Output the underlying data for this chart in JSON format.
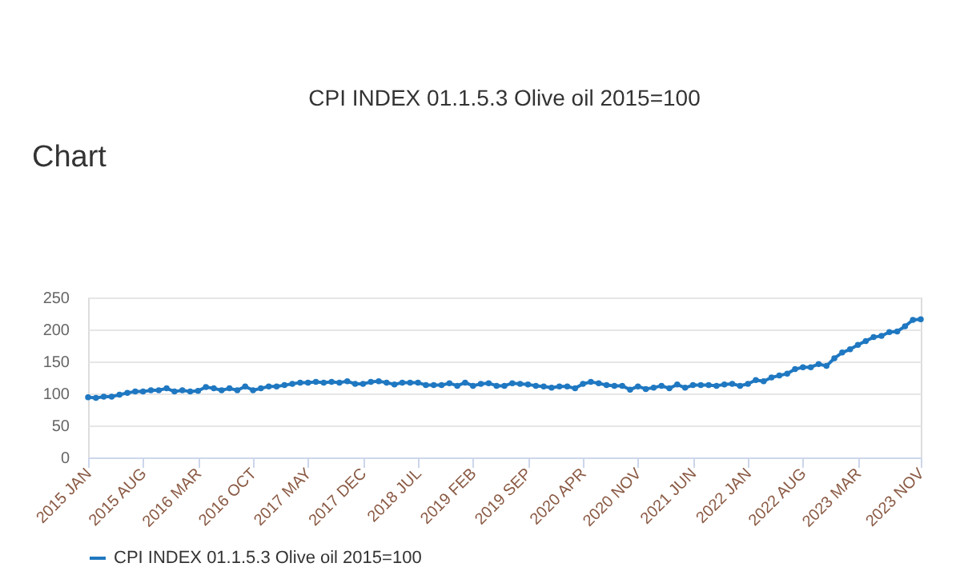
{
  "chart_data": {
    "type": "line",
    "title": "CPI INDEX 01.1.5.3 Olive oil 2015=100",
    "annotations": [
      "Chart"
    ],
    "categories": [
      "2015 JAN",
      null,
      null,
      null,
      null,
      null,
      null,
      "2015 AUG",
      null,
      null,
      null,
      null,
      null,
      null,
      "2016 MAR",
      null,
      null,
      null,
      null,
      null,
      null,
      "2016 OCT",
      null,
      null,
      null,
      null,
      null,
      null,
      "2017 MAY",
      null,
      null,
      null,
      null,
      null,
      null,
      "2017 DEC",
      null,
      null,
      null,
      null,
      null,
      null,
      "2018 JUL",
      null,
      null,
      null,
      null,
      null,
      null,
      "2019 FEB",
      null,
      null,
      null,
      null,
      null,
      null,
      "2019 SEP",
      null,
      null,
      null,
      null,
      null,
      null,
      "2020 APR",
      null,
      null,
      null,
      null,
      null,
      null,
      "2020 NOV",
      null,
      null,
      null,
      null,
      null,
      null,
      "2021 JUN",
      null,
      null,
      null,
      null,
      null,
      null,
      "2022 JAN",
      null,
      null,
      null,
      null,
      null,
      null,
      "2022 AUG",
      null,
      null,
      null,
      null,
      null,
      null,
      "2023 MAR",
      null,
      null,
      null,
      null,
      null,
      null,
      null,
      "2023 NOV"
    ],
    "series": [
      {
        "name": "CPI INDEX 01.1.5.3 Olive oil 2015=100",
        "color": "#1f78c1",
        "values": [
          94,
          93,
          95,
          95,
          98,
          101,
          103,
          103,
          105,
          105,
          108,
          103,
          105,
          103,
          104,
          110,
          108,
          105,
          108,
          105,
          111,
          105,
          108,
          111,
          111,
          113,
          115,
          117,
          117,
          118,
          117,
          118,
          117,
          119,
          115,
          115,
          118,
          119,
          117,
          114,
          117,
          117,
          117,
          113,
          113,
          113,
          116,
          112,
          117,
          112,
          115,
          116,
          112,
          112,
          116,
          115,
          114,
          112,
          111,
          109,
          111,
          111,
          108,
          115,
          118,
          116,
          113,
          112,
          112,
          106,
          111,
          107,
          109,
          112,
          108,
          114,
          109,
          113,
          113,
          113,
          112,
          114,
          115,
          112,
          115,
          121,
          119,
          125,
          128,
          131,
          138,
          141,
          141,
          146,
          143,
          155,
          164,
          169,
          176,
          182,
          188,
          190,
          196,
          197,
          205,
          215,
          216
        ]
      }
    ],
    "ylim": [
      0,
      250
    ],
    "yticks": [
      0,
      50,
      100,
      150,
      200,
      250
    ],
    "grid": "y",
    "legend": "bottom",
    "marker": "circle",
    "line_style": "solid"
  }
}
